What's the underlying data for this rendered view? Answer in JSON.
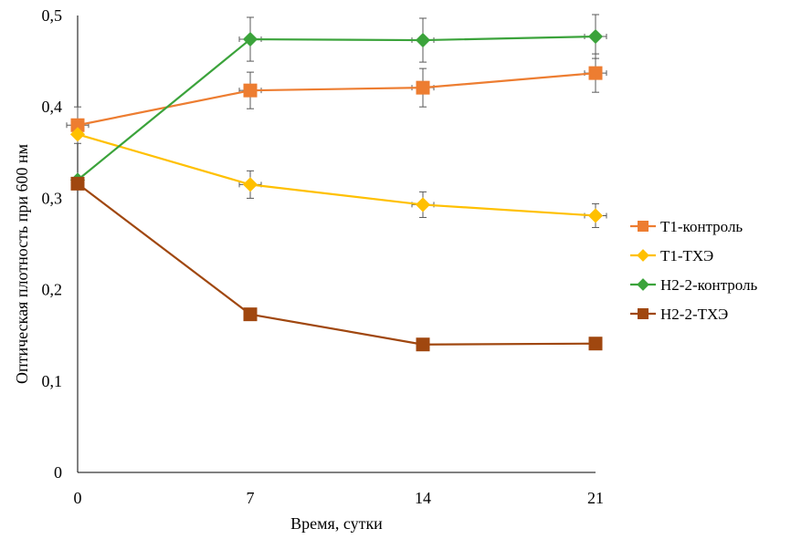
{
  "chart_data": {
    "type": "line",
    "title": "",
    "xlabel": "Время, сутки",
    "ylabel": "Оптическая плотность при 600 нм",
    "x": [
      0,
      7,
      14,
      21
    ],
    "x_tick_labels": [
      "0",
      "7",
      "14",
      "21"
    ],
    "ylim": [
      0,
      0.5
    ],
    "y_ticks": [
      0,
      0.1,
      0.2,
      0.3,
      0.4,
      0.5
    ],
    "y_tick_labels": [
      "0",
      "0,1",
      "0,2",
      "0,3",
      "0,4",
      "0,5"
    ],
    "grid": false,
    "legend_position": "right",
    "series": [
      {
        "name": "Т1-контроль",
        "values": [
          0.38,
          0.418,
          0.421,
          0.437
        ],
        "errors": [
          0.02,
          0.02,
          0.021,
          0.021
        ],
        "color": "#ED7D31",
        "marker": "square"
      },
      {
        "name": "Т1-ТХЭ",
        "values": [
          0.37,
          0.315,
          0.293,
          0.281
        ],
        "errors": [
          0.0,
          0.015,
          0.014,
          0.013
        ],
        "color": "#FFC000",
        "marker": "diamond"
      },
      {
        "name": "Н2-2-контроль",
        "values": [
          0.32,
          0.474,
          0.473,
          0.477
        ],
        "errors": [
          0.0,
          0.024,
          0.024,
          0.024
        ],
        "color": "#3BA33B",
        "marker": "diamond"
      },
      {
        "name": "Н2-2-ТХЭ",
        "values": [
          0.316,
          0.173,
          0.14,
          0.141
        ],
        "errors": [
          0.0,
          0.0,
          0.0,
          0.0
        ],
        "color": "#A0470F",
        "marker": "square"
      }
    ]
  }
}
